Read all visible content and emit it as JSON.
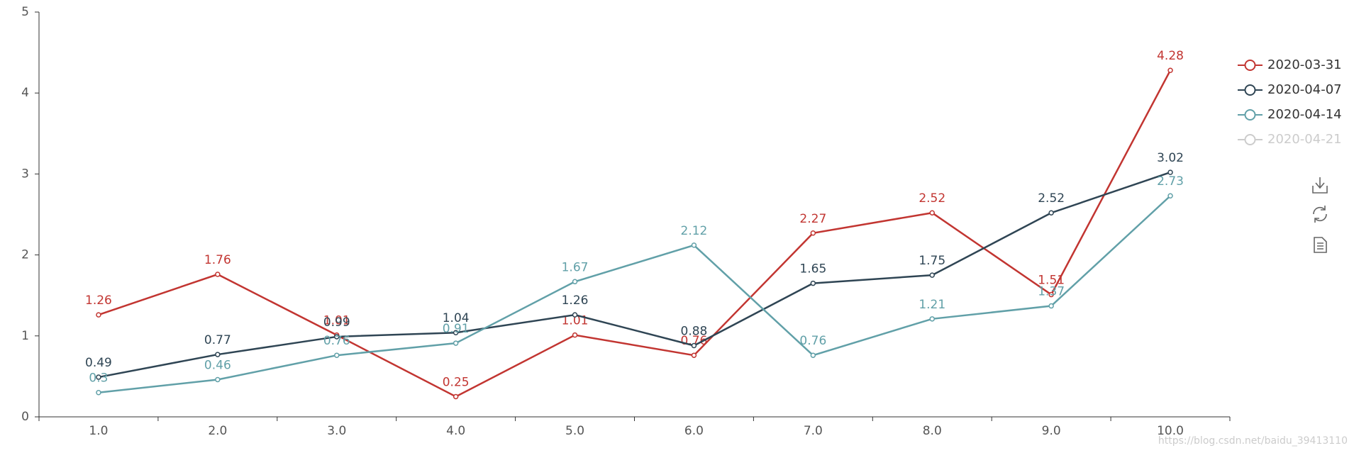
{
  "chart_data": {
    "type": "line",
    "categories": [
      "1.0",
      "2.0",
      "3.0",
      "4.0",
      "5.0",
      "6.0",
      "7.0",
      "8.0",
      "9.0",
      "10.0"
    ],
    "series": [
      {
        "name": "2020-03-31",
        "color": "#c23531",
        "values": [
          1.26,
          1.76,
          1.01,
          0.25,
          1.01,
          0.76,
          2.27,
          2.52,
          1.51,
          4.28
        ]
      },
      {
        "name": "2020-04-07",
        "color": "#2f4554",
        "values": [
          0.49,
          0.77,
          0.99,
          1.04,
          1.26,
          0.88,
          1.65,
          1.75,
          2.52,
          3.02
        ]
      },
      {
        "name": "2020-04-14",
        "color": "#61a0a8",
        "values": [
          0.3,
          0.46,
          0.76,
          0.91,
          1.67,
          2.12,
          0.76,
          1.21,
          1.37,
          2.73
        ]
      },
      {
        "name": "2020-04-21",
        "color": "#cccccc",
        "hidden": true
      }
    ],
    "ylim": [
      0,
      5
    ],
    "yticks": [
      0,
      1,
      2,
      3,
      4,
      5
    ],
    "legend": "right",
    "annotation": "https://blog.csdn.net/baidu_39413110"
  }
}
